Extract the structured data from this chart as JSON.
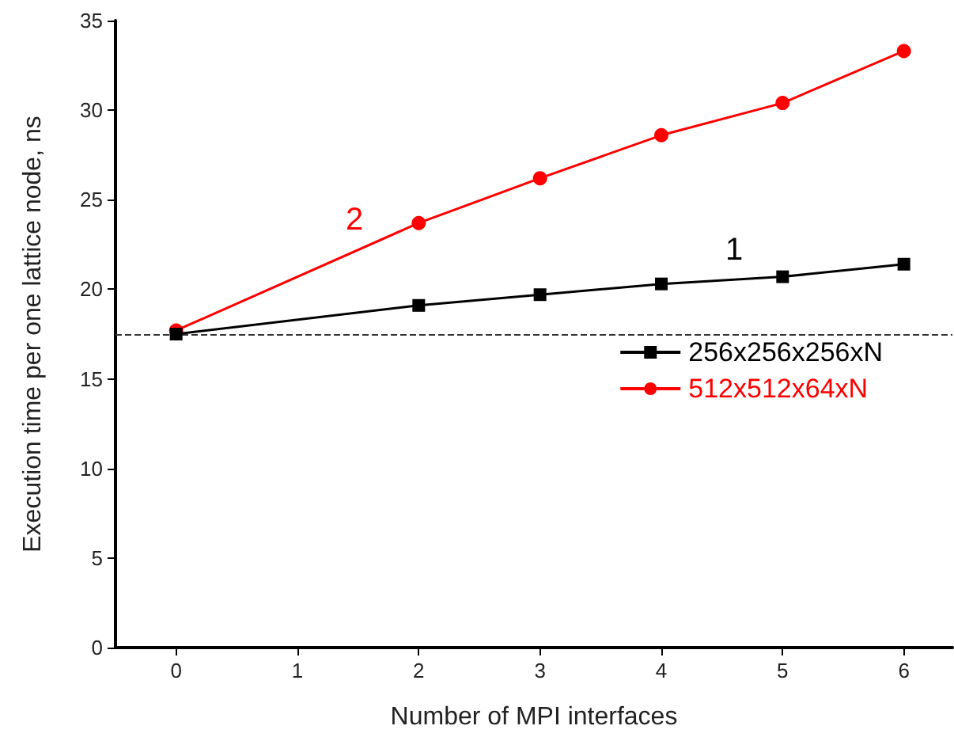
{
  "chart_data": {
    "type": "line",
    "xlabel": "Number of MPI interfaces",
    "ylabel": "Execution time per one lattice node, ns",
    "series": [
      {
        "name": "256x256x256xN",
        "color": "#000000",
        "marker": "square",
        "x": [
          0,
          2,
          3,
          4,
          5,
          6
        ],
        "values": [
          17.5,
          19.1,
          19.7,
          20.3,
          20.7,
          21.4
        ]
      },
      {
        "name": "512x512x64xN",
        "color": "#ff0000",
        "marker": "circle",
        "x": [
          0,
          2,
          3,
          4,
          5,
          6
        ],
        "values": [
          17.7,
          23.7,
          26.2,
          28.6,
          30.4,
          33.3
        ]
      }
    ],
    "xlim": [
      -0.5,
      6.4
    ],
    "xticks": [
      0,
      1,
      2,
      3,
      4,
      5,
      6
    ],
    "ylim": [
      0,
      35
    ],
    "yticks": [
      0,
      5,
      10,
      15,
      20,
      25,
      30,
      35
    ],
    "ref_lines": [
      {
        "axis": "y",
        "value": 17.5,
        "color": "#333333",
        "line_style": "dashed"
      }
    ],
    "annotations": [
      "2",
      "1"
    ],
    "grid": false,
    "legend": "right",
    "line_style": "solid"
  }
}
